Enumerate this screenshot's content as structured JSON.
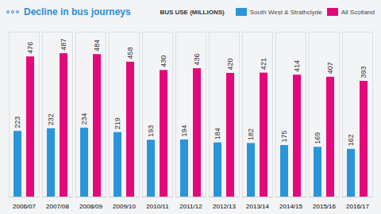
{
  "chart_data": {
    "type": "bar",
    "title": "Decline in bus journeys",
    "legend_title": "BUS USE (MILLIONS)",
    "categories": [
      "2006/07",
      "2007/08",
      "2008/09",
      "2009/10",
      "2010/11",
      "2011/12",
      "2012/13",
      "2013/14",
      "2014/15",
      "2015/16",
      "2016/17"
    ],
    "series": [
      {
        "name": "South West & Strathclyde",
        "color": "#2b95d9",
        "values": [
          223,
          232,
          234,
          219,
          193,
          194,
          184,
          182,
          175,
          169,
          162
        ]
      },
      {
        "name": "All Scotland",
        "color": "#e4087a",
        "values": [
          476,
          487,
          484,
          458,
          430,
          436,
          420,
          421,
          414,
          407,
          393
        ]
      }
    ],
    "ylim": [
      0,
      560
    ],
    "yticks": [
      0
    ],
    "data_labels": true,
    "tick_labels": "x",
    "legend": "top-right"
  }
}
